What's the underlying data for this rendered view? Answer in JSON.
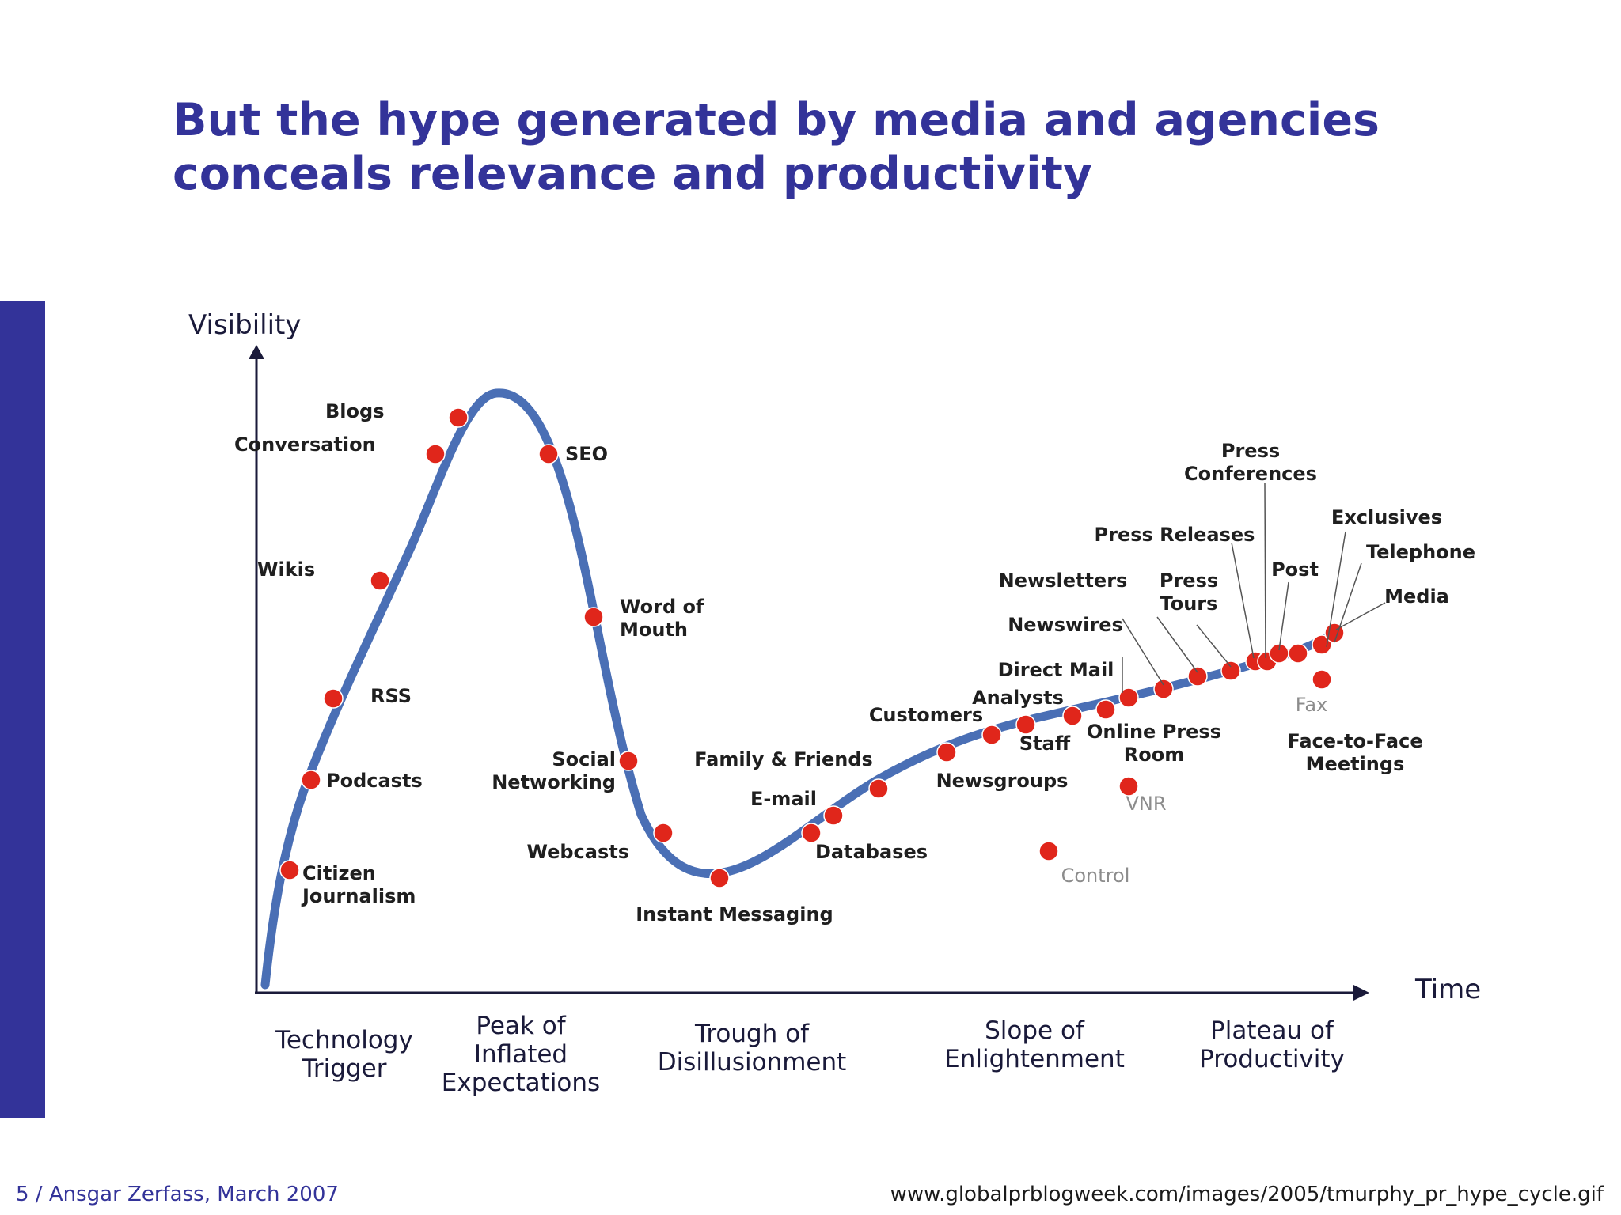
{
  "slide": {
    "title_line1": "But the hype generated by media and agencies",
    "title_line2": "conceals relevance and productivity",
    "footer_left": "5 / Ansgar Zerfass, March 2007",
    "footer_right": "www.globalprblogweek.com/images/2005/tmurphy_pr_hype_cycle.gif"
  },
  "colors": {
    "title": "#333399",
    "accent_bar": "#333399",
    "curve": "#4a6fb5",
    "marker": "#e0261b",
    "axis": "#1a1a3a"
  },
  "diagram": {
    "y_axis_label": "Visibility",
    "x_axis_label": "Time",
    "phases": [
      "Technology\nTrigger",
      "Peak of\nInflated\nExpectations",
      "Trough of\nDisillusionment",
      "Slope of\nEnlightenment",
      "Plateau of\nProductivity"
    ],
    "items": [
      {
        "label": "Citizen\nJournalism",
        "muted": false
      },
      {
        "label": "Podcasts",
        "muted": false
      },
      {
        "label": "RSS",
        "muted": false
      },
      {
        "label": "Wikis",
        "muted": false
      },
      {
        "label": "Conversation",
        "muted": false
      },
      {
        "label": "Blogs",
        "muted": false
      },
      {
        "label": "SEO",
        "muted": false
      },
      {
        "label": "Word of\nMouth",
        "muted": false
      },
      {
        "label": "Social\nNetworking",
        "muted": false
      },
      {
        "label": "Webcasts",
        "muted": false
      },
      {
        "label": "Instant Messaging",
        "muted": false
      },
      {
        "label": "Databases",
        "muted": false
      },
      {
        "label": "E-mail",
        "muted": false
      },
      {
        "label": "Family & Friends",
        "muted": false
      },
      {
        "label": "Newsgroups",
        "muted": false
      },
      {
        "label": "Customers",
        "muted": false
      },
      {
        "label": "Staff",
        "muted": false
      },
      {
        "label": "Analysts",
        "muted": false
      },
      {
        "label": "Online Press\nRoom",
        "muted": false
      },
      {
        "label": "Direct Mail",
        "muted": false
      },
      {
        "label": "Newswires",
        "muted": false
      },
      {
        "label": "Newsletters",
        "muted": false
      },
      {
        "label": "Press\nTours",
        "muted": false
      },
      {
        "label": "Press Releases",
        "muted": false
      },
      {
        "label": "Press\nConferences",
        "muted": false
      },
      {
        "label": "Post",
        "muted": false
      },
      {
        "label": "Exclusives",
        "muted": false
      },
      {
        "label": "Telephone",
        "muted": false
      },
      {
        "label": "Media",
        "muted": false
      },
      {
        "label": "Face-to-Face\nMeetings",
        "muted": false
      },
      {
        "label": "Fax",
        "muted": true
      },
      {
        "label": "VNR",
        "muted": true
      },
      {
        "label": "Control",
        "muted": true
      }
    ]
  }
}
